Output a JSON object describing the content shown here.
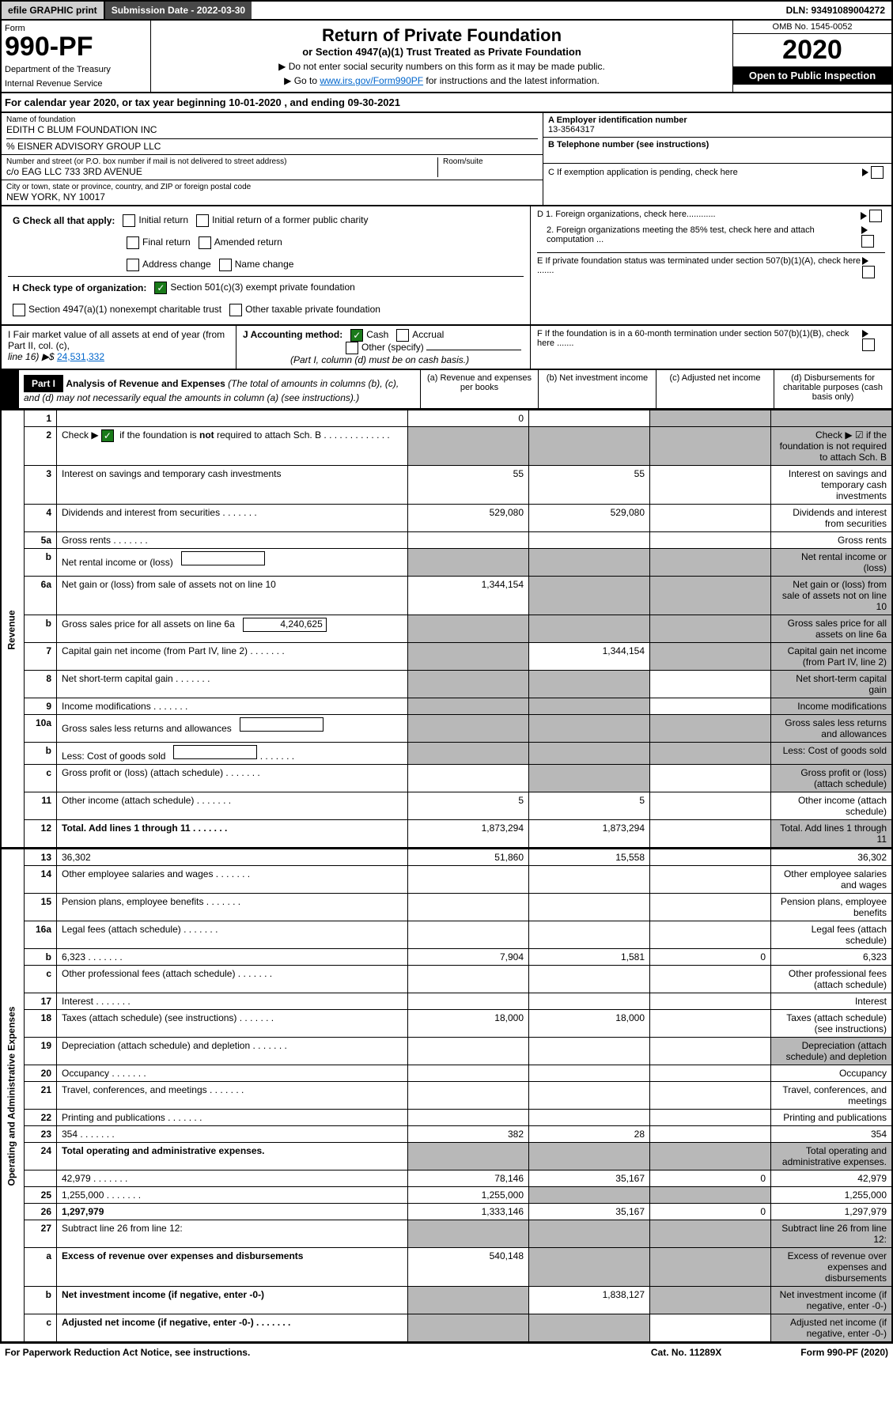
{
  "top": {
    "efile": "efile GRAPHIC print",
    "submission": "Submission Date - 2022-03-30",
    "dln": "DLN: 93491089004272"
  },
  "header": {
    "form_label": "Form",
    "form_number": "990-PF",
    "dept1": "Department of the Treasury",
    "dept2": "Internal Revenue Service",
    "title": "Return of Private Foundation",
    "subtitle": "or Section 4947(a)(1) Trust Treated as Private Foundation",
    "instruct1": "▶ Do not enter social security numbers on this form as it may be made public.",
    "instruct2_pre": "▶ Go to ",
    "instruct2_link": "www.irs.gov/Form990PF",
    "instruct2_post": " for instructions and the latest information.",
    "omb": "OMB No. 1545-0052",
    "year": "2020",
    "open": "Open to Public Inspection"
  },
  "calyear": "For calendar year 2020, or tax year beginning 10-01-2020              , and ending 09-30-2021",
  "info": {
    "name_label": "Name of foundation",
    "name": "EDITH C BLUM FOUNDATION INC",
    "care_of": "% EISNER ADVISORY GROUP LLC",
    "addr_label": "Number and street (or P.O. box number if mail is not delivered to street address)",
    "addr": "c/o EAG LLC 733 3RD AVENUE",
    "room_label": "Room/suite",
    "city_label": "City or town, state or province, country, and ZIP or foreign postal code",
    "city": "NEW YORK, NY  10017",
    "ein_label": "A Employer identification number",
    "ein": "13-3564317",
    "tel_label": "B Telephone number (see instructions)",
    "c": "C If exemption application is pending, check here",
    "d1": "D 1. Foreign organizations, check here............",
    "d2": "2. Foreign organizations meeting the 85% test, check here and attach computation ...",
    "e": "E  If private foundation status was terminated under section 507(b)(1)(A), check here .......",
    "f": "F  If the foundation is in a 60-month termination under section 507(b)(1)(B), check here .......",
    "g_label": "G Check all that apply:",
    "g_opts": [
      "Initial return",
      "Initial return of a former public charity",
      "Final return",
      "Amended return",
      "Address change",
      "Name change"
    ],
    "h_label": "H Check type of organization:",
    "h1": "Section 501(c)(3) exempt private foundation",
    "h2": "Section 4947(a)(1) nonexempt charitable trust",
    "h3": "Other taxable private foundation",
    "i_label": "I Fair market value of all assets at end of year (from Part II, col. (c),",
    "i_line": "line 16) ▶$ ",
    "i_val": "24,531,332",
    "j_label": "J Accounting method:",
    "j1": "Cash",
    "j2": "Accrual",
    "j3": "Other (specify)",
    "j_note": "(Part I, column (d) must be on cash basis.)"
  },
  "part1": {
    "label": "Part I",
    "title": "Analysis of Revenue and Expenses",
    "note": " (The total of amounts in columns (b), (c), and (d) may not necessarily equal the amounts in column (a) (see instructions).)",
    "col_a": "(a)  Revenue and expenses per books",
    "col_b": "(b)  Net investment income",
    "col_c": "(c)  Adjusted net income",
    "col_d": "(d)  Disbursements for charitable purposes (cash basis only)"
  },
  "sections": {
    "revenue": "Revenue",
    "expenses": "Operating and Administrative Expenses"
  },
  "rows": [
    {
      "n": "1",
      "d": "",
      "a": "0",
      "b": "",
      "c": "",
      "grey_cd": true
    },
    {
      "n": "2",
      "d": "Check ▶ ☑ if the foundation is not required to attach Sch. B",
      "dots": true,
      "grey_all": true,
      "checked": true
    },
    {
      "n": "3",
      "d": "Interest on savings and temporary cash investments",
      "a": "55",
      "b": "55"
    },
    {
      "n": "4",
      "d": "Dividends and interest from securities",
      "dots": true,
      "a": "529,080",
      "b": "529,080"
    },
    {
      "n": "5a",
      "d": "Gross rents",
      "dots": true
    },
    {
      "n": "b",
      "d": "Net rental income or (loss)",
      "inline": true,
      "grey_all": true
    },
    {
      "n": "6a",
      "d": "Net gain or (loss) from sale of assets not on line 10",
      "a": "1,344,154",
      "grey_bcd": true
    },
    {
      "n": "b",
      "d": "Gross sales price for all assets on line 6a",
      "inline": true,
      "inline_val": "4,240,625",
      "grey_all": true
    },
    {
      "n": "7",
      "d": "Capital gain net income (from Part IV, line 2)",
      "dots": true,
      "b": "1,344,154",
      "grey_a": true,
      "grey_cd": true
    },
    {
      "n": "8",
      "d": "Net short-term capital gain",
      "dots": true,
      "grey_ab": true,
      "grey_d": true
    },
    {
      "n": "9",
      "d": "Income modifications",
      "dots": true,
      "grey_ab": true,
      "grey_d": true
    },
    {
      "n": "10a",
      "d": "Gross sales less returns and allowances",
      "inline": true,
      "grey_all": true
    },
    {
      "n": "b",
      "d": "Less: Cost of goods sold",
      "dots": true,
      "inline": true,
      "grey_all": true
    },
    {
      "n": "c",
      "d": "Gross profit or (loss) (attach schedule)",
      "dots": true,
      "grey_b": true,
      "grey_d": true
    },
    {
      "n": "11",
      "d": "Other income (attach schedule)",
      "dots": true,
      "a": "5",
      "b": "5"
    },
    {
      "n": "12",
      "d": "Total. Add lines 1 through 11",
      "dots": true,
      "bold": true,
      "a": "1,873,294",
      "b": "1,873,294",
      "grey_d": true
    }
  ],
  "exp_rows": [
    {
      "n": "13",
      "d": "36,302",
      "a": "51,860",
      "b": "15,558"
    },
    {
      "n": "14",
      "d": "Other employee salaries and wages",
      "dots": true
    },
    {
      "n": "15",
      "d": "Pension plans, employee benefits",
      "dots": true
    },
    {
      "n": "16a",
      "d": "Legal fees (attach schedule)",
      "dots": true
    },
    {
      "n": "b",
      "d": "6,323",
      "dots": true,
      "a": "7,904",
      "b": "1,581",
      "c": "0"
    },
    {
      "n": "c",
      "d": "Other professional fees (attach schedule)",
      "dots": true
    },
    {
      "n": "17",
      "d": "Interest",
      "dots": true
    },
    {
      "n": "18",
      "d": "Taxes (attach schedule) (see instructions)",
      "dots": true,
      "a": "18,000",
      "b": "18,000"
    },
    {
      "n": "19",
      "d": "Depreciation (attach schedule) and depletion",
      "dots": true,
      "grey_d": true
    },
    {
      "n": "20",
      "d": "Occupancy",
      "dots": true
    },
    {
      "n": "21",
      "d": "Travel, conferences, and meetings",
      "dots": true
    },
    {
      "n": "22",
      "d": "Printing and publications",
      "dots": true
    },
    {
      "n": "23",
      "d": "354",
      "dots": true,
      "a": "382",
      "b": "28"
    },
    {
      "n": "24",
      "d": "Total operating and administrative expenses.",
      "bold": true,
      "grey_all": true
    },
    {
      "n": "",
      "d": "42,979",
      "dots": true,
      "a": "78,146",
      "b": "35,167",
      "c": "0"
    },
    {
      "n": "25",
      "d": "1,255,000",
      "dots": true,
      "a": "1,255,000",
      "grey_bc": true
    },
    {
      "n": "26",
      "d": "1,297,979",
      "bold": true,
      "a": "1,333,146",
      "b": "35,167",
      "c": "0"
    },
    {
      "n": "27",
      "d": "Subtract line 26 from line 12:",
      "grey_all": true
    },
    {
      "n": "a",
      "d": "Excess of revenue over expenses and disbursements",
      "bold": true,
      "a": "540,148",
      "grey_bcd": true
    },
    {
      "n": "b",
      "d": "Net investment income (if negative, enter -0-)",
      "bold": true,
      "grey_a": true,
      "b": "1,838,127",
      "grey_cd": true
    },
    {
      "n": "c",
      "d": "Adjusted net income (if negative, enter -0-)",
      "dots": true,
      "bold": true,
      "grey_ab": true,
      "grey_d": true
    }
  ],
  "footer": {
    "left": "For Paperwork Reduction Act Notice, see instructions.",
    "mid": "Cat. No. 11289X",
    "right": "Form 990-PF (2020)"
  }
}
